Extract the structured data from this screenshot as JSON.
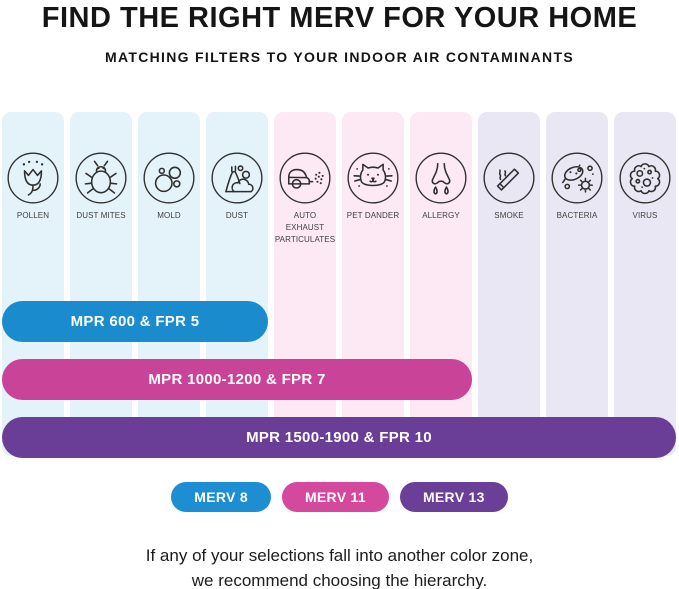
{
  "header": {
    "title": "FIND THE RIGHT MERV FOR YOUR HOME",
    "subtitle": "MATCHING FILTERS TO YOUR INDOOR AIR CONTAMINANTS"
  },
  "zones": {
    "blue": "#e4f2fa",
    "pink": "#fce9f3",
    "purple": "#eae7f4"
  },
  "columns": [
    {
      "label": "POLLEN",
      "icon": "pollen-icon",
      "zone": "blue"
    },
    {
      "label": "DUST MITES",
      "icon": "dust-mites-icon",
      "zone": "blue"
    },
    {
      "label": "MOLD",
      "icon": "mold-icon",
      "zone": "blue"
    },
    {
      "label": "DUST",
      "icon": "dust-icon",
      "zone": "blue"
    },
    {
      "label": "AUTO EXHAUST PARTICULATES",
      "icon": "auto-exhaust-icon",
      "zone": "pink"
    },
    {
      "label": "PET DANDER",
      "icon": "pet-dander-icon",
      "zone": "pink"
    },
    {
      "label": "ALLERGY",
      "icon": "allergy-icon",
      "zone": "pink"
    },
    {
      "label": "SMOKE",
      "icon": "smoke-icon",
      "zone": "purple"
    },
    {
      "label": "BACTERIA",
      "icon": "bacteria-icon",
      "zone": "purple"
    },
    {
      "label": "VIRUS",
      "icon": "virus-icon",
      "zone": "purple"
    }
  ],
  "bars": [
    {
      "label": "MPR 600 & FPR 5",
      "color": "#1a8ccd",
      "span_columns": 4
    },
    {
      "label": "MPR 1000-1200 & FPR 7",
      "color": "#c94398",
      "span_columns": 7
    },
    {
      "label": "MPR 1500-1900 & FPR 10",
      "color": "#6a3d96",
      "span_columns": 10
    }
  ],
  "badges": [
    {
      "label": "MERV 8",
      "color": "#1d8ed2"
    },
    {
      "label": "MERV 11",
      "color": "#d4499e"
    },
    {
      "label": "MERV 13",
      "color": "#6b3e98"
    }
  ],
  "footer": {
    "line1": "If any of your selections fall into another color zone,",
    "line2": "we recommend choosing the hierarchy."
  }
}
